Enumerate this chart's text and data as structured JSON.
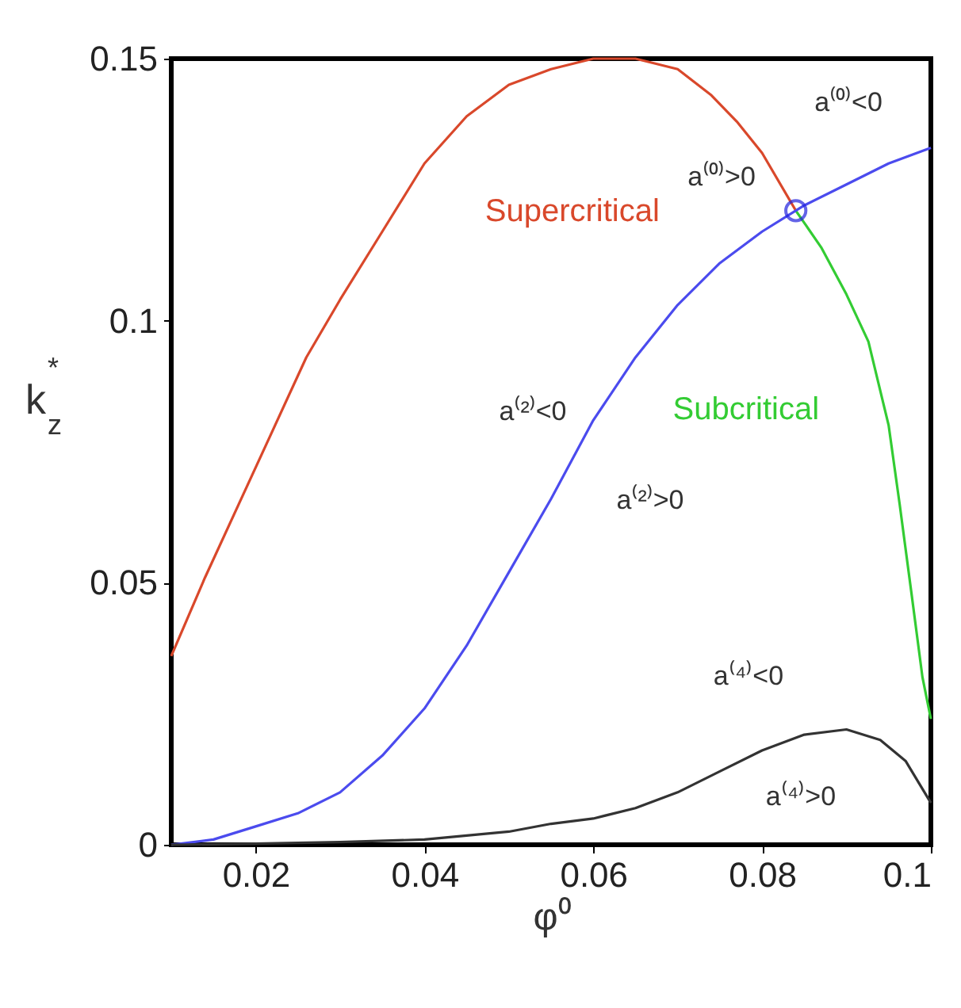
{
  "chart_data": {
    "type": "line",
    "xlabel": "φ⁰",
    "ylabel": "k$_{z}$$^{*}$",
    "xlim": [
      0.01,
      0.1
    ],
    "ylim": [
      0,
      0.15
    ],
    "xticks": [
      0.02,
      0.04,
      0.06,
      0.08,
      0.1
    ],
    "yticks": [
      0,
      0.05,
      0.1,
      0.15
    ],
    "grid": false,
    "legend": false,
    "marker": "none",
    "line_style": "solid",
    "series": [
      {
        "name": "Supercritical",
        "color": "#d9482b",
        "x": [
          0.01,
          0.014,
          0.018,
          0.022,
          0.026,
          0.03,
          0.035,
          0.04,
          0.045,
          0.05,
          0.055,
          0.06,
          0.065,
          0.07,
          0.074,
          0.077,
          0.08,
          0.084
        ],
        "values": [
          0.036,
          0.051,
          0.065,
          0.079,
          0.093,
          0.104,
          0.117,
          0.13,
          0.139,
          0.145,
          0.148,
          0.15,
          0.15,
          0.148,
          0.143,
          0.138,
          0.132,
          0.121
        ]
      },
      {
        "name": "Subcritical",
        "color": "#33cc33",
        "x": [
          0.084,
          0.087,
          0.09,
          0.0926,
          0.095,
          0.0963,
          0.0977,
          0.099,
          0.1
        ],
        "values": [
          0.121,
          0.114,
          0.105,
          0.096,
          0.08,
          0.065,
          0.048,
          0.032,
          0.024
        ]
      },
      {
        "color": "#4b4bee",
        "x": [
          0.01,
          0.015,
          0.02,
          0.025,
          0.03,
          0.035,
          0.04,
          0.045,
          0.05,
          0.055,
          0.06,
          0.065,
          0.07,
          0.075,
          0.08,
          0.085,
          0.09,
          0.095,
          0.1
        ],
        "values": [
          0,
          0.001,
          0.0035,
          0.006,
          0.01,
          0.017,
          0.026,
          0.038,
          0.052,
          0.066,
          0.081,
          0.093,
          0.103,
          0.111,
          0.117,
          0.122,
          0.126,
          0.13,
          0.133
        ]
      },
      {
        "color": "#333333",
        "x": [
          0.01,
          0.02,
          0.03,
          0.04,
          0.05,
          0.055,
          0.06,
          0.065,
          0.07,
          0.075,
          0.08,
          0.085,
          0.09,
          0.094,
          0.097,
          0.1
        ],
        "values": [
          0,
          0.0002,
          0.0005,
          0.001,
          0.0025,
          0.004,
          0.005,
          0.007,
          0.01,
          0.014,
          0.018,
          0.021,
          0.022,
          0.02,
          0.016,
          0.008
        ]
      },
      {
        "type": "scatter",
        "marker": "circle",
        "color": "#2222dd",
        "x": [
          0.084
        ],
        "values": [
          0.121
        ]
      }
    ],
    "annotations": [
      "a⁽⁰⁾<0",
      "a⁽⁰⁾>0",
      "a⁽²⁾<0",
      "a⁽²⁾>0",
      "a⁽⁴⁾<0",
      "a⁽⁴⁾>0"
    ]
  }
}
